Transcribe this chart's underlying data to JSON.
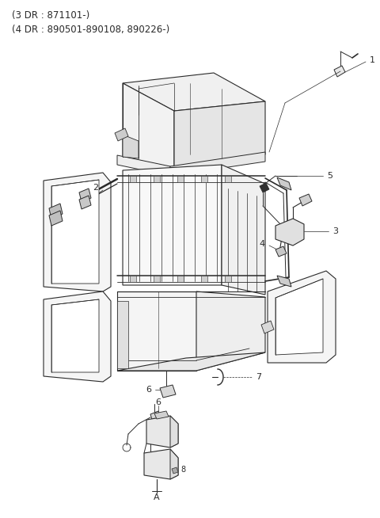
{
  "header_line1": "(3 DR : 871101-)",
  "header_line2": "(4 DR : 890501-890108, 890226-)",
  "bg_color": "#ffffff",
  "line_color": "#2a2a2a",
  "fig_width": 4.8,
  "fig_height": 6.54,
  "dpi": 100
}
